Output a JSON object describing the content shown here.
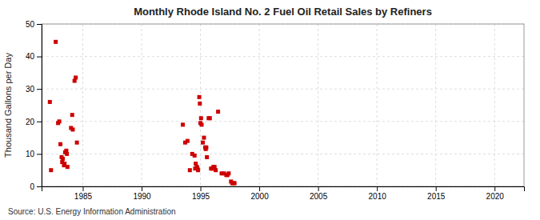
{
  "chart_data": {
    "type": "scatter",
    "title": "Monthly Rhode Island No. 2 Fuel Oil Retail Sales by Refiners",
    "ylabel": "Thousand Gallons per Day",
    "source": "Source: U.S. Energy Information Administration",
    "color": "#cc0000",
    "marker": "square",
    "grid": true,
    "xlim": [
      1981.5,
      2022.5
    ],
    "ylim": [
      0,
      50
    ],
    "xticks": [
      1985,
      1990,
      1995,
      2000,
      2005,
      2010,
      2015,
      2020
    ],
    "yticks": [
      0,
      10,
      20,
      30,
      40,
      50
    ],
    "x": [
      1982.2,
      1982.3,
      1982.7,
      1982.9,
      1983.0,
      1983.1,
      1983.2,
      1983.25,
      1983.3,
      1983.4,
      1983.45,
      1983.5,
      1983.6,
      1983.65,
      1983.7,
      1984.0,
      1984.1,
      1984.15,
      1984.3,
      1984.4,
      1984.5,
      1993.5,
      1993.7,
      1993.9,
      1994.1,
      1994.3,
      1994.5,
      1994.55,
      1994.6,
      1994.7,
      1994.75,
      1994.8,
      1994.9,
      1994.95,
      1995.0,
      1995.05,
      1995.1,
      1995.2,
      1995.3,
      1995.4,
      1995.45,
      1995.5,
      1995.55,
      1995.7,
      1995.8,
      1995.9,
      1996.0,
      1996.05,
      1996.1,
      1996.2,
      1996.3,
      1996.5,
      1996.8,
      1997.0,
      1997.2,
      1997.3,
      1997.4,
      1997.6,
      1997.7,
      1997.8,
      1997.9
    ],
    "values": [
      26.0,
      5.0,
      44.5,
      19.5,
      20.0,
      13.0,
      9.0,
      7.5,
      8.5,
      6.5,
      7.0,
      10.5,
      11.0,
      10.0,
      6.0,
      18.0,
      22.0,
      17.5,
      32.5,
      33.5,
      13.5,
      19.0,
      13.5,
      14.0,
      5.0,
      10.0,
      9.5,
      5.5,
      7.0,
      6.0,
      5.5,
      5.0,
      27.5,
      25.5,
      19.5,
      21.0,
      19.0,
      13.5,
      15.0,
      12.0,
      11.5,
      12.0,
      9.0,
      21.0,
      21.0,
      5.5,
      5.5,
      5.5,
      6.0,
      6.0,
      5.0,
      23.0,
      4.0,
      4.0,
      3.5,
      3.5,
      4.0,
      1.5,
      1.0,
      1.0,
      1.0
    ]
  }
}
